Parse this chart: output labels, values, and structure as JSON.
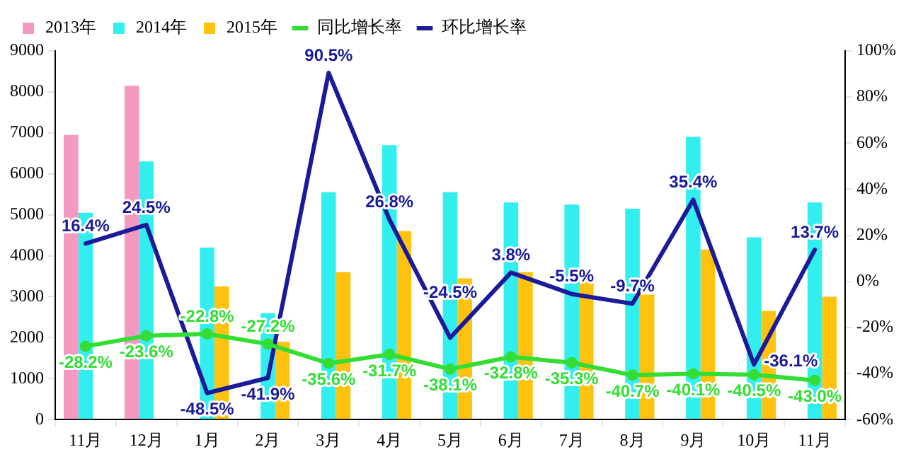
{
  "chart_data": {
    "type": "bar",
    "categories": [
      "11月",
      "12月",
      "1月",
      "2月",
      "3月",
      "4月",
      "5月",
      "6月",
      "7月",
      "8月",
      "9月",
      "10月",
      "11月"
    ],
    "series": [
      {
        "name": "2013年",
        "color": "#f49ac1",
        "values": [
          6950,
          8150,
          null,
          null,
          null,
          null,
          null,
          null,
          null,
          null,
          null,
          null,
          null
        ]
      },
      {
        "name": "2014年",
        "color": "#33eeee",
        "values": [
          5050,
          6300,
          4200,
          2600,
          5550,
          6700,
          5550,
          5300,
          5250,
          5150,
          6900,
          4450,
          5300
        ]
      },
      {
        "name": "2015年",
        "color": "#ffc20e",
        "values": [
          null,
          null,
          3250,
          1900,
          3600,
          4600,
          3450,
          3600,
          3400,
          3050,
          4150,
          2650,
          3000
        ]
      },
      {
        "name": "同比增长率",
        "type": "line",
        "axis": "y2",
        "color": "#33dd33",
        "marker": "circle",
        "values": [
          -28.2,
          -23.6,
          -22.8,
          -27.2,
          -35.6,
          -31.7,
          -38.1,
          -32.8,
          -35.3,
          -40.7,
          -40.1,
          -40.5,
          -43.0
        ],
        "value_labels": [
          "-28.2%",
          "-23.6%",
          "-22.8%",
          "-27.2%",
          "-35.6%",
          "-31.7%",
          "-38.1%",
          "-32.8%",
          "-35.3%",
          "-40.7%",
          "-40.1%",
          "-40.5%",
          "-43.0%"
        ]
      },
      {
        "name": "环比增长率",
        "type": "line",
        "axis": "y2",
        "color": "#1a1a9a",
        "marker": "none",
        "values": [
          16.4,
          24.5,
          -48.5,
          -41.9,
          90.5,
          26.8,
          -24.5,
          3.8,
          -5.5,
          -9.7,
          35.4,
          -36.1,
          13.7
        ],
        "value_labels": [
          "16.4%",
          "24.5%",
          "-48.5%",
          "-41.9%",
          "90.5%",
          "26.8%",
          "-24.5%",
          "3.8%",
          "-5.5%",
          "-9.7%",
          "35.4%",
          "-36.1%",
          "13.7%"
        ]
      }
    ],
    "ylim": [
      0,
      9000
    ],
    "yticks": [
      0,
      1000,
      2000,
      3000,
      4000,
      5000,
      6000,
      7000,
      8000,
      9000
    ],
    "y2lim": [
      -60,
      100
    ],
    "y2ticks": [
      {
        "value": -60,
        "label": "-60%"
      },
      {
        "value": -40,
        "label": "-40%"
      },
      {
        "value": -20,
        "label": "-20%"
      },
      {
        "value": 0,
        "label": "0%"
      },
      {
        "value": 20,
        "label": "20%"
      },
      {
        "value": 40,
        "label": "40%"
      },
      {
        "value": 60,
        "label": "60%"
      },
      {
        "value": 80,
        "label": "80%"
      },
      {
        "value": 100,
        "label": "100%"
      }
    ],
    "grid": false,
    "legend": "top left"
  }
}
